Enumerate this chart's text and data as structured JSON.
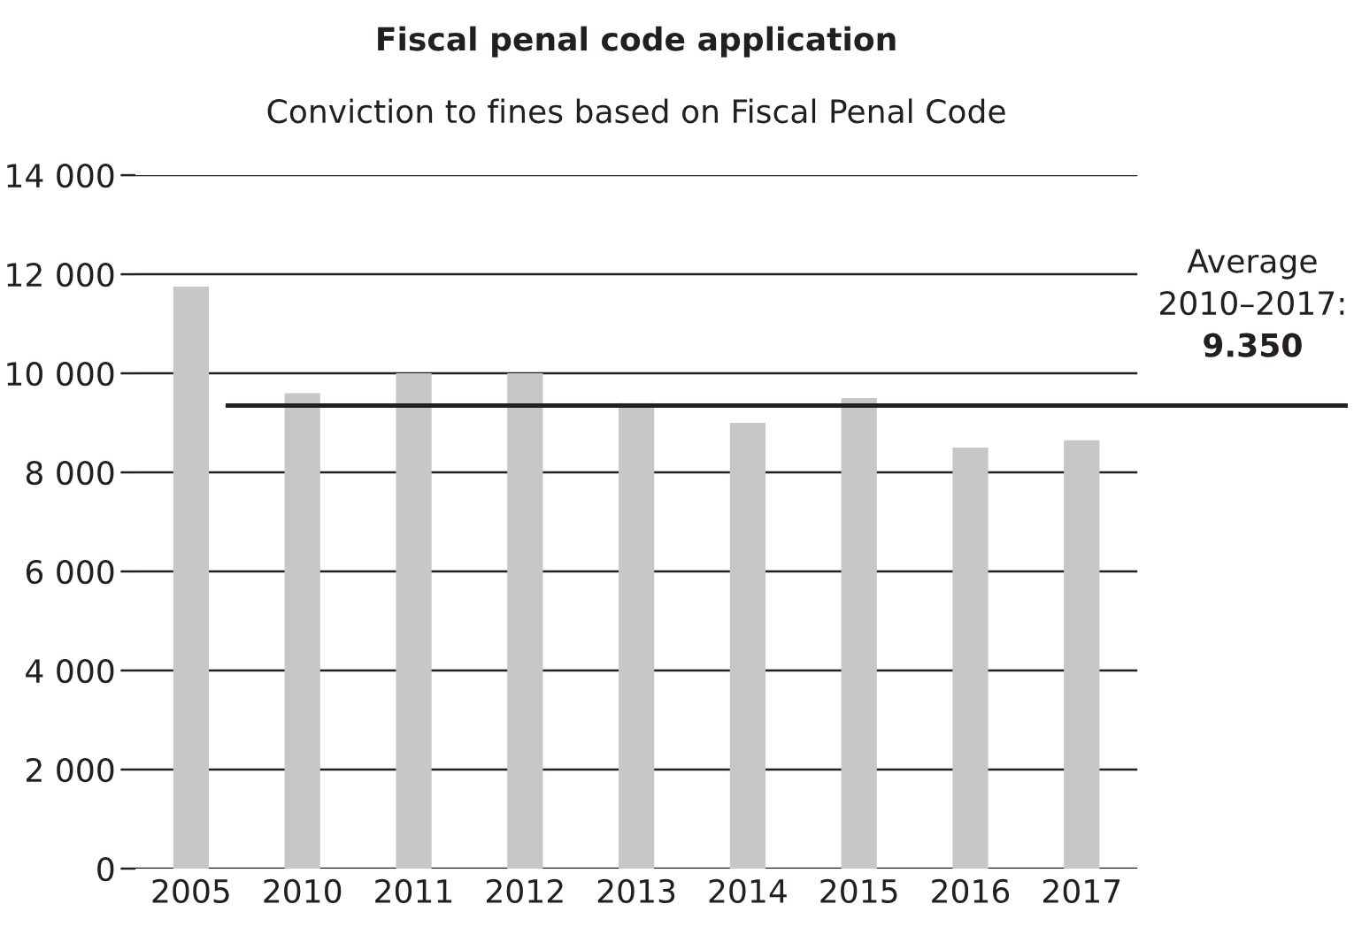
{
  "chart_data": {
    "type": "bar",
    "title": "Fiscal penal code application",
    "subtitle": "Conviction to fines based on Fiscal Penal Code",
    "categories": [
      "2005",
      "2010",
      "2011",
      "2012",
      "2013",
      "2014",
      "2015",
      "2016",
      "2017"
    ],
    "values": [
      11750,
      9600,
      10000,
      10000,
      9400,
      9000,
      9500,
      8500,
      8650
    ],
    "color": "#c6c7c8",
    "ylim": [
      0,
      14000
    ],
    "yticks": [
      {
        "value": 0,
        "label": "0"
      },
      {
        "value": 2000,
        "label": "2 000"
      },
      {
        "value": 4000,
        "label": "4 000"
      },
      {
        "value": 6000,
        "label": "6 000"
      },
      {
        "value": 8000,
        "label": "8 000"
      },
      {
        "value": 10000,
        "label": "10 000"
      },
      {
        "value": 12000,
        "label": "12 000"
      },
      {
        "value": 14000,
        "label": "14 000"
      }
    ],
    "grid": "y",
    "ref_lines": [
      {
        "axis": "y",
        "value": 9350,
        "label": "Average\n2010–2017:\n9.350",
        "color": "#231f20"
      }
    ]
  }
}
